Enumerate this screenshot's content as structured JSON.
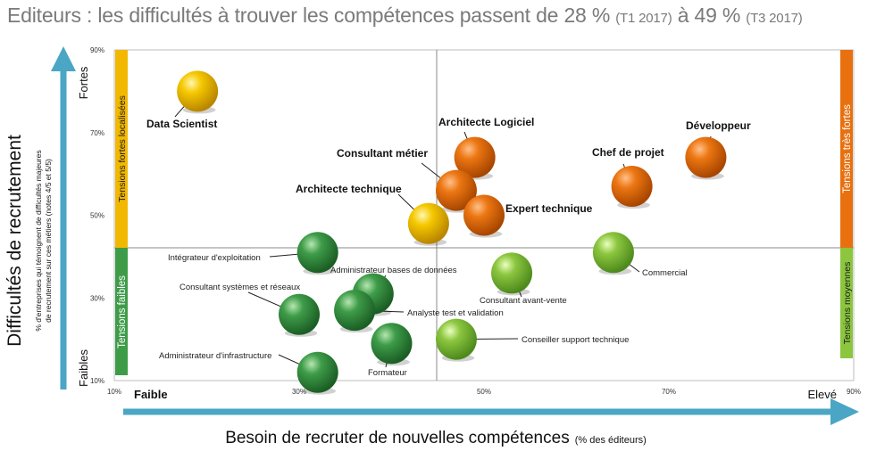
{
  "header": {
    "main": "Editeurs : les difficultés à trouver les compétences passent de 28 % ",
    "q1": "(T1 2017)",
    "mid": " à 49 % ",
    "q3": "(T3 2017)"
  },
  "chart_data": {
    "type": "scatter",
    "xlabel": "Besoin de recruter de nouvelles compétences",
    "xlabel_unit": "(% des éditeurs)",
    "ylabel": "Difficultés de recrutement",
    "ylabel_sub1": "% d'entreprises qui témoignent de difficultés majeures",
    "ylabel_sub2": "de recrutement sur ces métiers (notes 4/5 et 5/5)",
    "xlim": [
      10,
      90
    ],
    "ylim": [
      10,
      90
    ],
    "x_ticks": [
      "10%",
      "30%",
      "50%",
      "70%",
      "90%"
    ],
    "y_ticks": [
      "10%",
      "30%",
      "50%",
      "70%",
      "90%"
    ],
    "x_low_label": "Faible",
    "x_high_label": "Elevé",
    "y_low_label": "Faibles",
    "y_high_label": "Fortes",
    "bands": {
      "left_top": "Tensions fortes  localisées",
      "left_bottom": "Tensions faibles",
      "right_top": "Tensions très fortes",
      "right_bottom": "Tensions moyennes"
    },
    "colors": {
      "yellow": "#f2b800",
      "orange": "#e8700e",
      "green": "#3e9c49",
      "lightgreen": "#8cc63f",
      "axis_arrow": "#4aa6c4"
    },
    "points": [
      {
        "name": "Data Scientist",
        "x": 19,
        "y": 80,
        "color": "yellow",
        "bold": true
      },
      {
        "name": "Architecte Logiciel",
        "x": 49,
        "y": 64,
        "color": "orange",
        "bold": true
      },
      {
        "name": "Développeur",
        "x": 74,
        "y": 64,
        "color": "orange",
        "bold": true
      },
      {
        "name": "Chef de projet",
        "x": 66,
        "y": 57,
        "color": "orange",
        "bold": true
      },
      {
        "name": "Consultant métier",
        "x": 47,
        "y": 56,
        "color": "orange",
        "bold": true
      },
      {
        "name": "Expert technique",
        "x": 50,
        "y": 50,
        "color": "orange",
        "bold": true
      },
      {
        "name": "Architecte technique",
        "x": 44,
        "y": 48,
        "color": "yellow",
        "bold": true
      },
      {
        "name": "Intégrateur d'exploitation",
        "x": 32,
        "y": 41,
        "color": "green",
        "bold": false
      },
      {
        "name": "Commercial",
        "x": 64,
        "y": 41,
        "color": "lightgreen",
        "bold": false
      },
      {
        "name": "Consultant avant-vente",
        "x": 53,
        "y": 36,
        "color": "lightgreen",
        "bold": false
      },
      {
        "name": "Administrateur bases de données",
        "x": 38,
        "y": 31,
        "color": "green",
        "bold": false
      },
      {
        "name": "Analyste test et validation",
        "x": 36,
        "y": 27,
        "color": "green",
        "bold": false
      },
      {
        "name": "Consultant systèmes et réseaux",
        "x": 30,
        "y": 26,
        "color": "green",
        "bold": false
      },
      {
        "name": "Conseiller support technique",
        "x": 47,
        "y": 20,
        "color": "lightgreen",
        "bold": false
      },
      {
        "name": "Formateur",
        "x": 40,
        "y": 19,
        "color": "green",
        "bold": false
      },
      {
        "name": "Administrateur d'infrastructure",
        "x": 32,
        "y": 12,
        "color": "green",
        "bold": false
      }
    ]
  }
}
